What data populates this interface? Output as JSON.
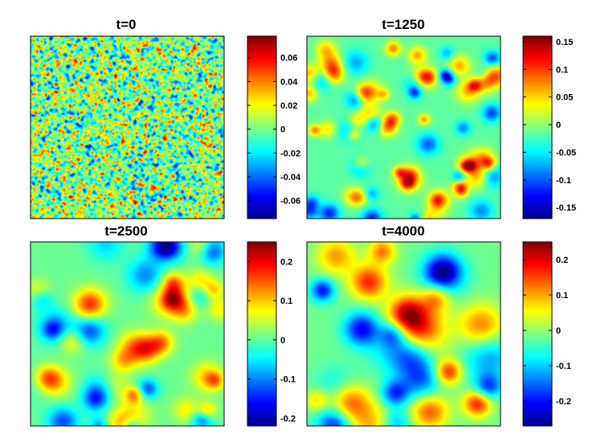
{
  "chart_data": [
    {
      "type": "heatmap",
      "title": "t=0",
      "colormap": "jet",
      "seed": 11,
      "blob_scale": "noise",
      "colorbar": {
        "range": [
          -0.075,
          0.078
        ],
        "ticks": [
          0.06,
          0.04,
          0.02,
          0,
          -0.02,
          -0.04,
          -0.06
        ],
        "tick_labels": [
          "0.06",
          "0.04",
          "0.02",
          "0",
          "-0.02",
          "-0.04",
          "-0.06"
        ]
      }
    },
    {
      "type": "heatmap",
      "title": "t=1250",
      "colormap": "jet",
      "seed": 23,
      "blob_scale": "small",
      "colorbar": {
        "range": [
          -0.17,
          0.16
        ],
        "ticks": [
          0.15,
          0.1,
          0.05,
          0,
          -0.05,
          -0.1,
          -0.15
        ],
        "tick_labels": [
          "0.15",
          "0.1",
          "0.05",
          "0",
          "-0.05",
          "-0.1",
          "-0.15"
        ]
      }
    },
    {
      "type": "heatmap",
      "title": "t=2500",
      "colormap": "jet",
      "seed": 37,
      "blob_scale": "medium",
      "colorbar": {
        "range": [
          -0.22,
          0.25
        ],
        "ticks": [
          0.2,
          0.1,
          0,
          -0.1,
          -0.2
        ],
        "tick_labels": [
          "0.2",
          "0.1",
          "0",
          "-0.1",
          "-0.2"
        ]
      }
    },
    {
      "type": "heatmap",
      "title": "t=4000",
      "colormap": "jet",
      "seed": 51,
      "blob_scale": "large",
      "colorbar": {
        "range": [
          -0.27,
          0.25
        ],
        "ticks": [
          0.2,
          0.1,
          0,
          -0.1,
          -0.2
        ],
        "tick_labels": [
          "0.2",
          "0.1",
          "0",
          "-0.1",
          "-0.2"
        ]
      }
    }
  ]
}
